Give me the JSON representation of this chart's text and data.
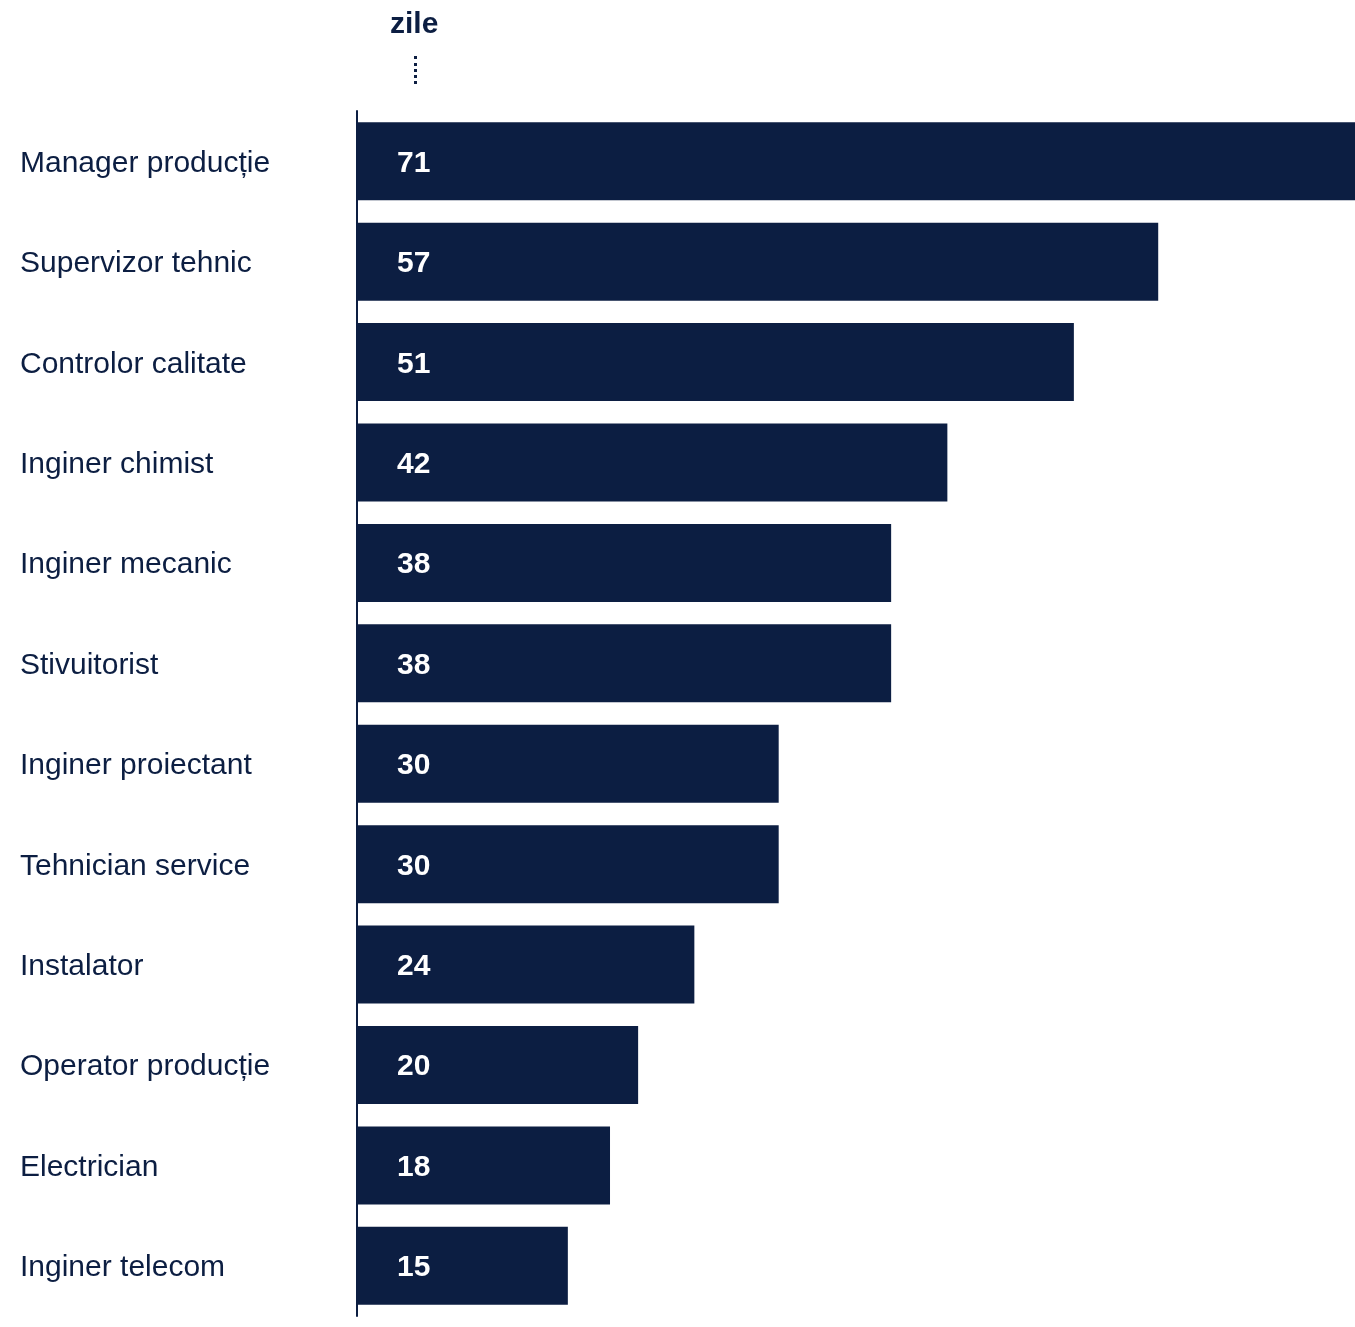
{
  "chart_data": {
    "type": "bar",
    "orientation": "horizontal",
    "xlabel": "zile",
    "categories": [
      "Manager producție",
      "Supervizor tehnic",
      "Controlor calitate",
      "Inginer chimist",
      "Inginer mecanic",
      "Stivuitorist",
      "Inginer proiectant",
      "Tehnician service",
      "Instalator",
      "Operator producție",
      "Electrician",
      "Inginer telecom"
    ],
    "values": [
      71,
      57,
      51,
      42,
      38,
      38,
      30,
      30,
      24,
      20,
      18,
      15
    ],
    "color": "#0c1e42",
    "xlim": [
      0,
      71
    ],
    "data_labels": true,
    "tick_labels": "y"
  }
}
